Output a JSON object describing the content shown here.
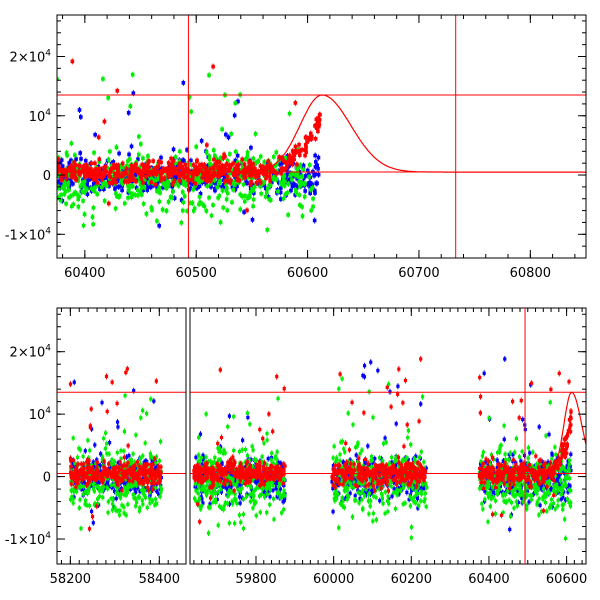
{
  "chart_data": [
    {
      "type": "scatter",
      "panel": "top",
      "xlim": [
        60375,
        60850
      ],
      "ylim": [
        -14000,
        27000
      ],
      "xtick_labels": [
        "60400",
        "60500",
        "60600",
        "60700",
        "60800"
      ],
      "xtick_values": [
        60400,
        60500,
        60600,
        60700,
        60800
      ],
      "ytick_labels": [
        {
          "value": -10000,
          "mantissa": "-1×10",
          "exp": "4"
        },
        {
          "value": 0,
          "mantissa": "0",
          "exp": ""
        },
        {
          "value": 10000,
          "mantissa": "10",
          "exp": "4"
        },
        {
          "value": 20000,
          "mantissa": "2×10",
          "exp": "4"
        }
      ],
      "hlines": [
        13500,
        500
      ],
      "vlines": [
        60493,
        60733
      ],
      "model_curve": {
        "peak_x": 60613,
        "peak_y": 13500,
        "baseline": 500,
        "color": "#ff0000"
      },
      "series": [
        {
          "color": "#0000ff",
          "x_range": [
            60375,
            60610
          ],
          "baseline": -200,
          "spread": 1500
        },
        {
          "color": "#00ee00",
          "x_range": [
            60375,
            60605
          ],
          "baseline": -800,
          "spread": 2500
        },
        {
          "color": "#ff0000",
          "x_range": [
            60375,
            60612
          ],
          "baseline": 500,
          "spread": 900
        }
      ]
    },
    {
      "type": "scatter",
      "panel": "bottom",
      "xlim": [
        58170,
        60650
      ],
      "ylim": [
        -14000,
        27000
      ],
      "broken_axis": true,
      "segments": [
        {
          "xlim": [
            58170,
            58460
          ],
          "ticks": [
            58200,
            58300,
            58400
          ]
        },
        {
          "xlim": [
            59630,
            60650
          ],
          "ticks": [
            59800,
            60000,
            60200,
            60400,
            60600
          ]
        }
      ],
      "xtick_labels": [
        "58200",
        "58400",
        "59800",
        "60000",
        "60200",
        "60400",
        "60600"
      ],
      "xtick_values": [
        58200,
        58400,
        59800,
        60000,
        60200,
        60400,
        60600
      ],
      "ytick_labels": [
        {
          "value": -10000,
          "mantissa": "-1×10",
          "exp": "4"
        },
        {
          "value": 0,
          "mantissa": "0",
          "exp": ""
        },
        {
          "value": 10000,
          "mantissa": "10",
          "exp": "4"
        },
        {
          "value": 20000,
          "mantissa": "2×10",
          "exp": "4"
        }
      ],
      "hlines": [
        13500,
        500
      ],
      "vlines": [
        60493
      ],
      "seasons": [
        [
          58200,
          58405
        ],
        [
          59640,
          59875
        ],
        [
          59995,
          60240
        ],
        [
          60375,
          60612
        ]
      ],
      "series": [
        {
          "color": "#0000ff",
          "baseline": -200,
          "spread": 1500
        },
        {
          "color": "#00ee00",
          "baseline": -800,
          "spread": 2500
        },
        {
          "color": "#ff0000",
          "baseline": 500,
          "spread": 900
        }
      ]
    }
  ]
}
